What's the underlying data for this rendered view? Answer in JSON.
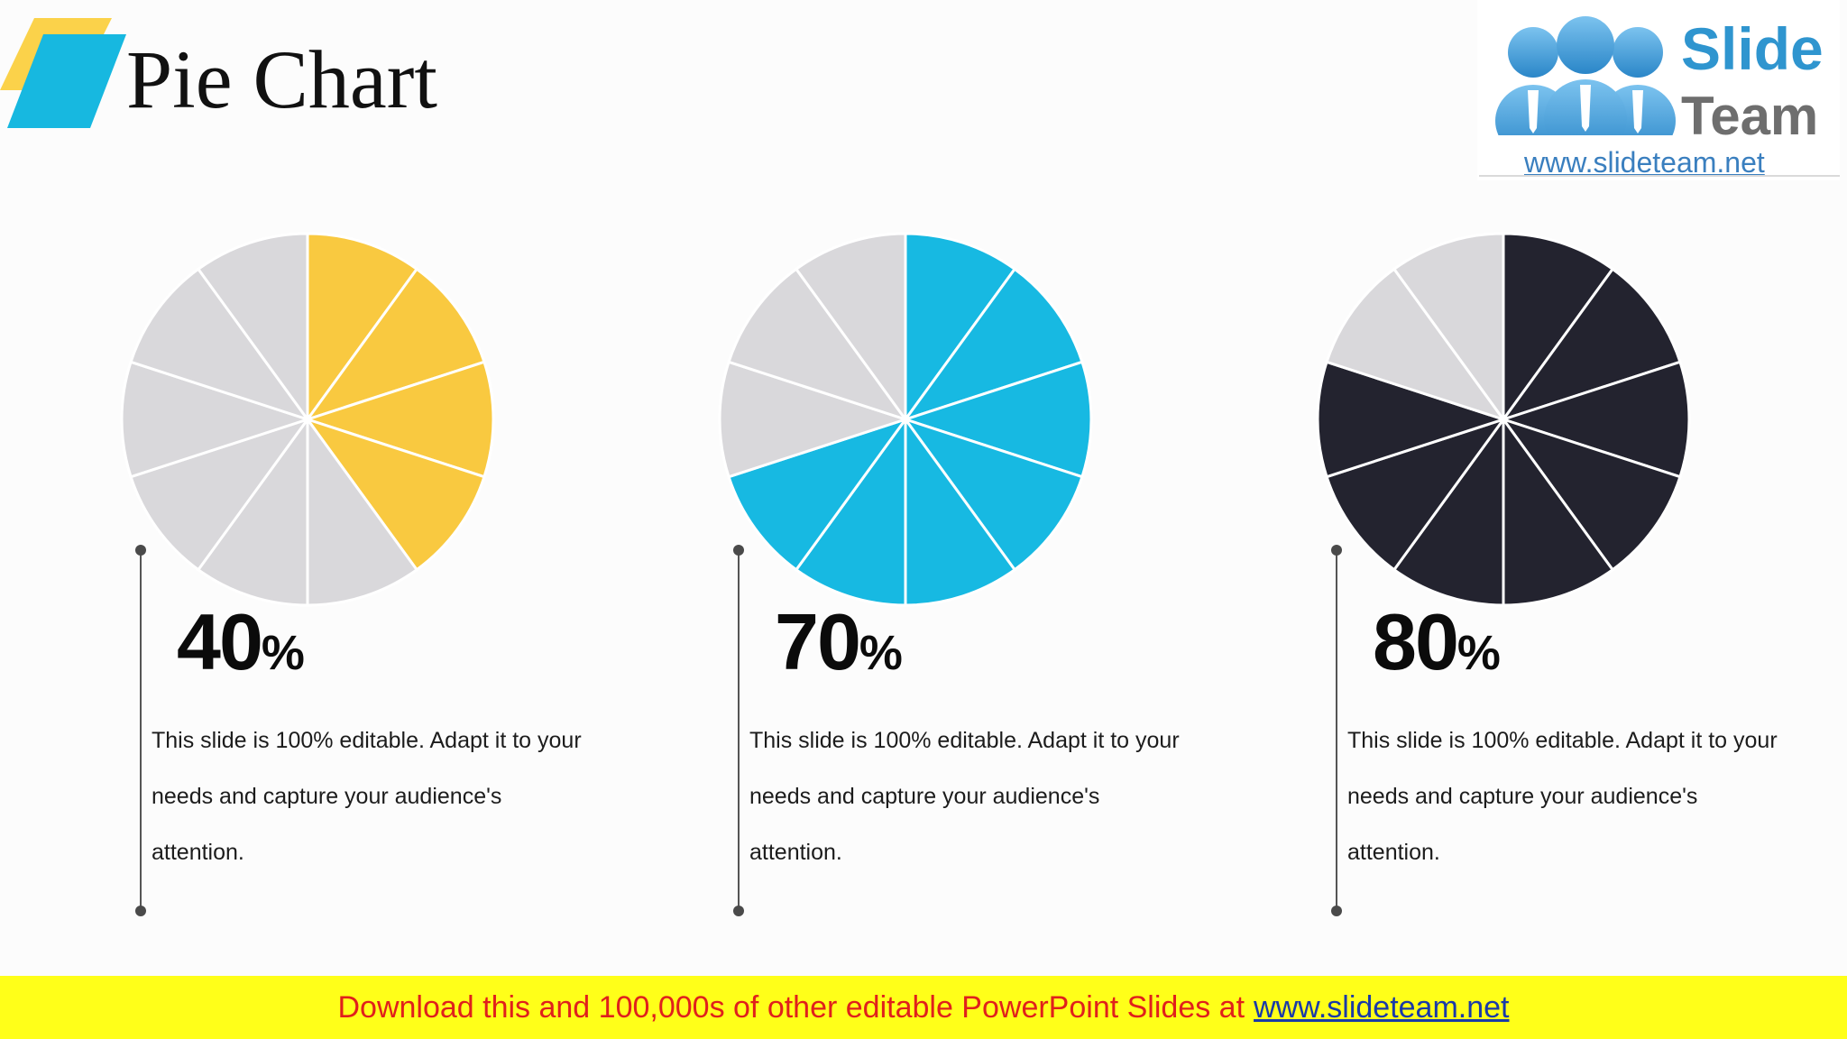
{
  "title": "Pie Chart",
  "logo": {
    "line1": "Slide",
    "line2": "Team",
    "url": "www.slideteam.net"
  },
  "colors": {
    "accent_yellow": "#fbd24a",
    "accent_blue": "#17b8e0",
    "unfilled_slice": "#d9d8db",
    "slice_separator": "#ffffff",
    "banner_background": "#ffff19",
    "banner_text": "#e0201c",
    "banner_link": "#1a3aa8"
  },
  "chart_data": [
    {
      "type": "pie",
      "segments": 10,
      "filled_segments": 4,
      "values": [
        40,
        60
      ],
      "fill_color": "#f9c940",
      "empty_color": "#d9d8db",
      "value_label": "40",
      "unit_label": "%",
      "description": "This slide is 100% editable. Adapt it to your needs and capture your audience's attention."
    },
    {
      "type": "pie",
      "segments": 10,
      "filled_segments": 7,
      "values": [
        70,
        30
      ],
      "fill_color": "#17b9e2",
      "empty_color": "#d9d8db",
      "value_label": "70",
      "unit_label": "%",
      "description": "This slide is 100% editable. Adapt it to your needs and capture your audience's attention."
    },
    {
      "type": "pie",
      "segments": 10,
      "filled_segments": 8,
      "values": [
        80,
        20
      ],
      "fill_color": "#23232f",
      "empty_color": "#d9d8db",
      "value_label": "80",
      "unit_label": "%",
      "description": "This slide is 100% editable. Adapt it to your needs and capture your audience's attention."
    }
  ],
  "banner": {
    "text": "Download this and 100,000s of other editable PowerPoint Slides at",
    "link": "www.slideteam.net"
  }
}
